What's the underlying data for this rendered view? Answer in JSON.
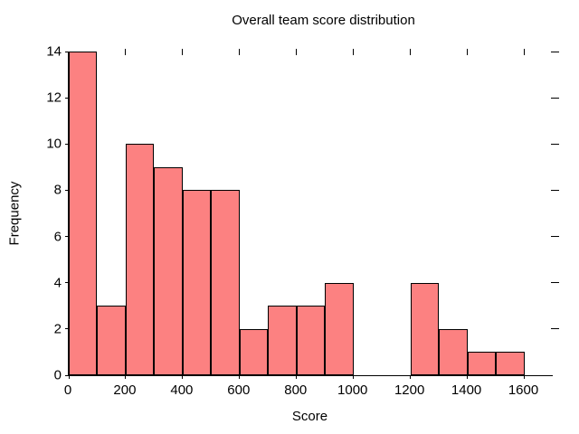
{
  "chart_data": {
    "type": "bar",
    "subtype": "histogram",
    "title": "Overall team score distribution",
    "xlabel": "Score",
    "ylabel": "Frequency",
    "bin_edges": [
      0,
      100,
      200,
      300,
      400,
      500,
      600,
      700,
      800,
      900,
      1000,
      1100,
      1200,
      1300,
      1400,
      1500,
      1600
    ],
    "frequencies": [
      14,
      3,
      10,
      9,
      8,
      8,
      2,
      3,
      3,
      4,
      0,
      0,
      4,
      2,
      1,
      1
    ],
    "xlim": [
      0,
      1700
    ],
    "ylim": [
      0,
      14
    ],
    "xticks": [
      0,
      200,
      400,
      600,
      800,
      1000,
      1200,
      1400,
      1600
    ],
    "yticks": [
      0,
      2,
      4,
      6,
      8,
      10,
      12,
      14
    ],
    "grid": false,
    "legend": null,
    "bar_color": "#fc8181",
    "bar_edge_color": "#000000",
    "axis_color": "#000000",
    "background_color": "#ffffff",
    "ticks_mirrored_top_right": true
  }
}
